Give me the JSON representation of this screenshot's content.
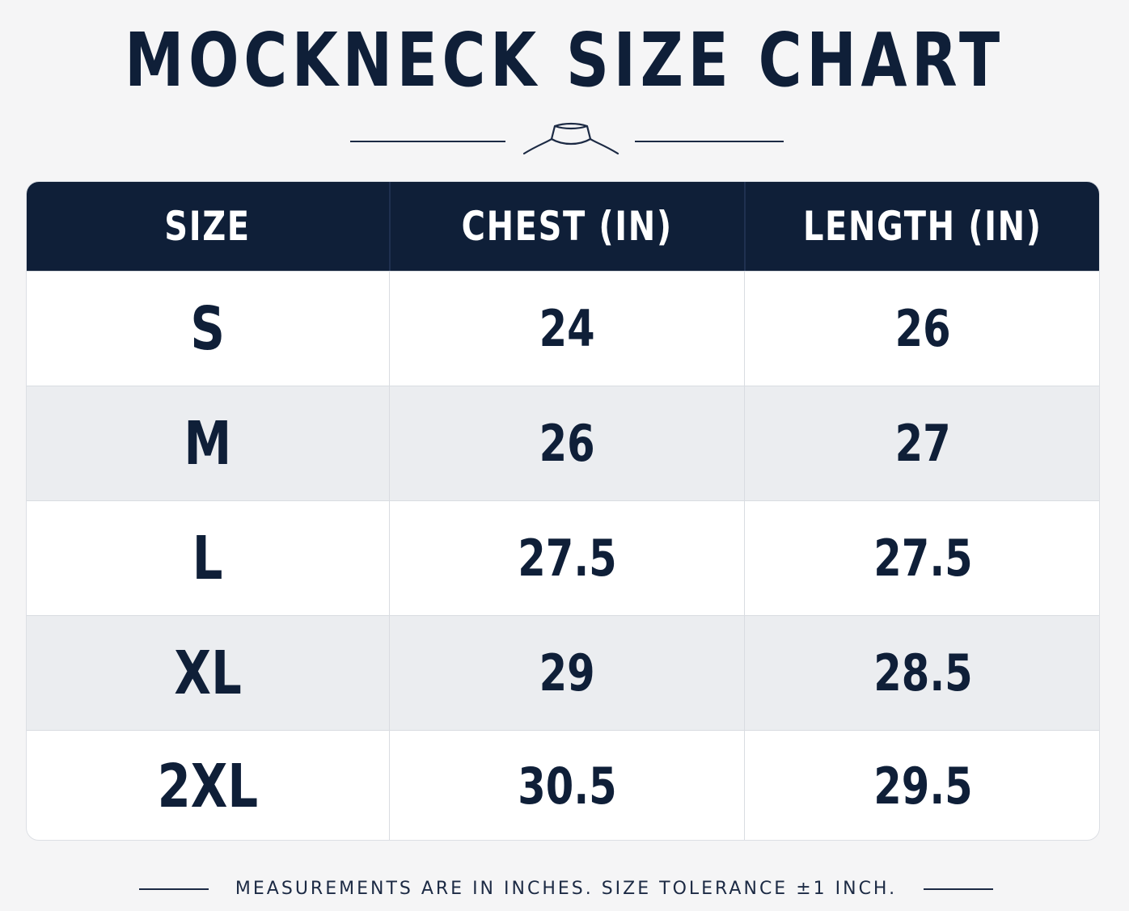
{
  "title": "MOCKNECK SIZE CHART",
  "decoration_icon": "mockneck-collar-icon",
  "colors": {
    "header_bg": "#0f1f38",
    "text": "#0f1f38",
    "row_alt": "#ebedf0",
    "row": "#ffffff",
    "background": "#f5f5f6"
  },
  "chart_data": {
    "type": "table",
    "title": "MOCKNECK SIZE CHART",
    "columns": [
      "SIZE",
      "CHEST (IN)",
      "LENGTH (IN)"
    ],
    "rows": [
      [
        "S",
        "24",
        "26"
      ],
      [
        "M",
        "26",
        "27"
      ],
      [
        "L",
        "27.5",
        "27.5"
      ],
      [
        "XL",
        "29",
        "28.5"
      ],
      [
        "2XL",
        "30.5",
        "29.5"
      ]
    ]
  },
  "footnote": "MEASUREMENTS ARE IN INCHES. SIZE TOLERANCE ±1 INCH."
}
